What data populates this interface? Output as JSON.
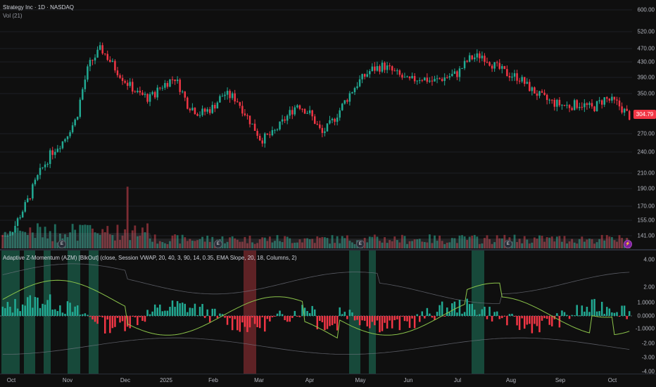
{
  "chart_header": {
    "symbol_title": "Strategy Inc · 1D · NASDAQ",
    "volume_label": "Vol (21)"
  },
  "indicator": {
    "label": "Adaptive Z-Momentum (AZM) [BlkOut] (close, Session VWAP, 20, 40, 3, 90, 14, 0.35, EMA Slope, 20, 18, Columns, 2)"
  },
  "price_axis": {
    "ticks": [
      "600.00",
      "520.00",
      "470.00",
      "430.00",
      "390.00",
      "350.00",
      "270.00",
      "240.00",
      "210.00",
      "190.00",
      "170.00",
      "155.00",
      "141.00"
    ],
    "last_price": "304.79"
  },
  "osc_axis": {
    "ticks": [
      "4.00",
      "2.00",
      "1.0000",
      "0.0000",
      "-1.0000",
      "-2.00",
      "-3.00",
      "-4.00"
    ]
  },
  "time_axis": {
    "labels": [
      "Oct",
      "Nov",
      "Dec",
      "2025",
      "Feb",
      "Mar",
      "Apr",
      "May",
      "Jun",
      "Jul",
      "Aug",
      "Sep",
      "Oct"
    ]
  },
  "events": {
    "earnings_icon": "E",
    "split_icon": "⚡"
  },
  "chart_data": {
    "type": "candlestick",
    "price_axis_ticks": [
      600,
      520,
      470,
      430,
      390,
      350,
      270,
      240,
      210,
      190,
      170,
      155,
      141
    ],
    "last_close": 304.79,
    "x_range": [
      "Oct",
      "Oct"
    ],
    "approx_closes_weekly": [
      135,
      150,
      175,
      210,
      240,
      260,
      300,
      420,
      470,
      420,
      380,
      350,
      340,
      370,
      390,
      330,
      310,
      320,
      350,
      340,
      300,
      260,
      270,
      300,
      330,
      310,
      270,
      300,
      340,
      380,
      410,
      420,
      400,
      380,
      390,
      380,
      390,
      400,
      440,
      450,
      420,
      400,
      390,
      360,
      340,
      330,
      325,
      330,
      320,
      340,
      330,
      304.79
    ],
    "oscillator": {
      "ylim": [
        -4,
        4
      ],
      "ticks": [
        4,
        2,
        1,
        0,
        -1,
        -2,
        -3,
        -4
      ],
      "highlight_zones": [
        {
          "from": "Oct",
          "to": "Nov",
          "color": "bullish"
        },
        {
          "from": "Nov",
          "to": "Dec",
          "color": "bullish"
        },
        {
          "from": "Feb",
          "to": "Mar",
          "color": "bearish"
        },
        {
          "from": "Apr",
          "to": "May",
          "color": "bullish"
        },
        {
          "from": "Jul",
          "to": "Jul",
          "color": "bullish"
        }
      ]
    }
  },
  "colors": {
    "bull": "#22ab94",
    "bear": "#f23645",
    "zone_bull": "#1b5e4a",
    "zone_bear": "#7a2a2e",
    "background": "#0f0f0f"
  }
}
